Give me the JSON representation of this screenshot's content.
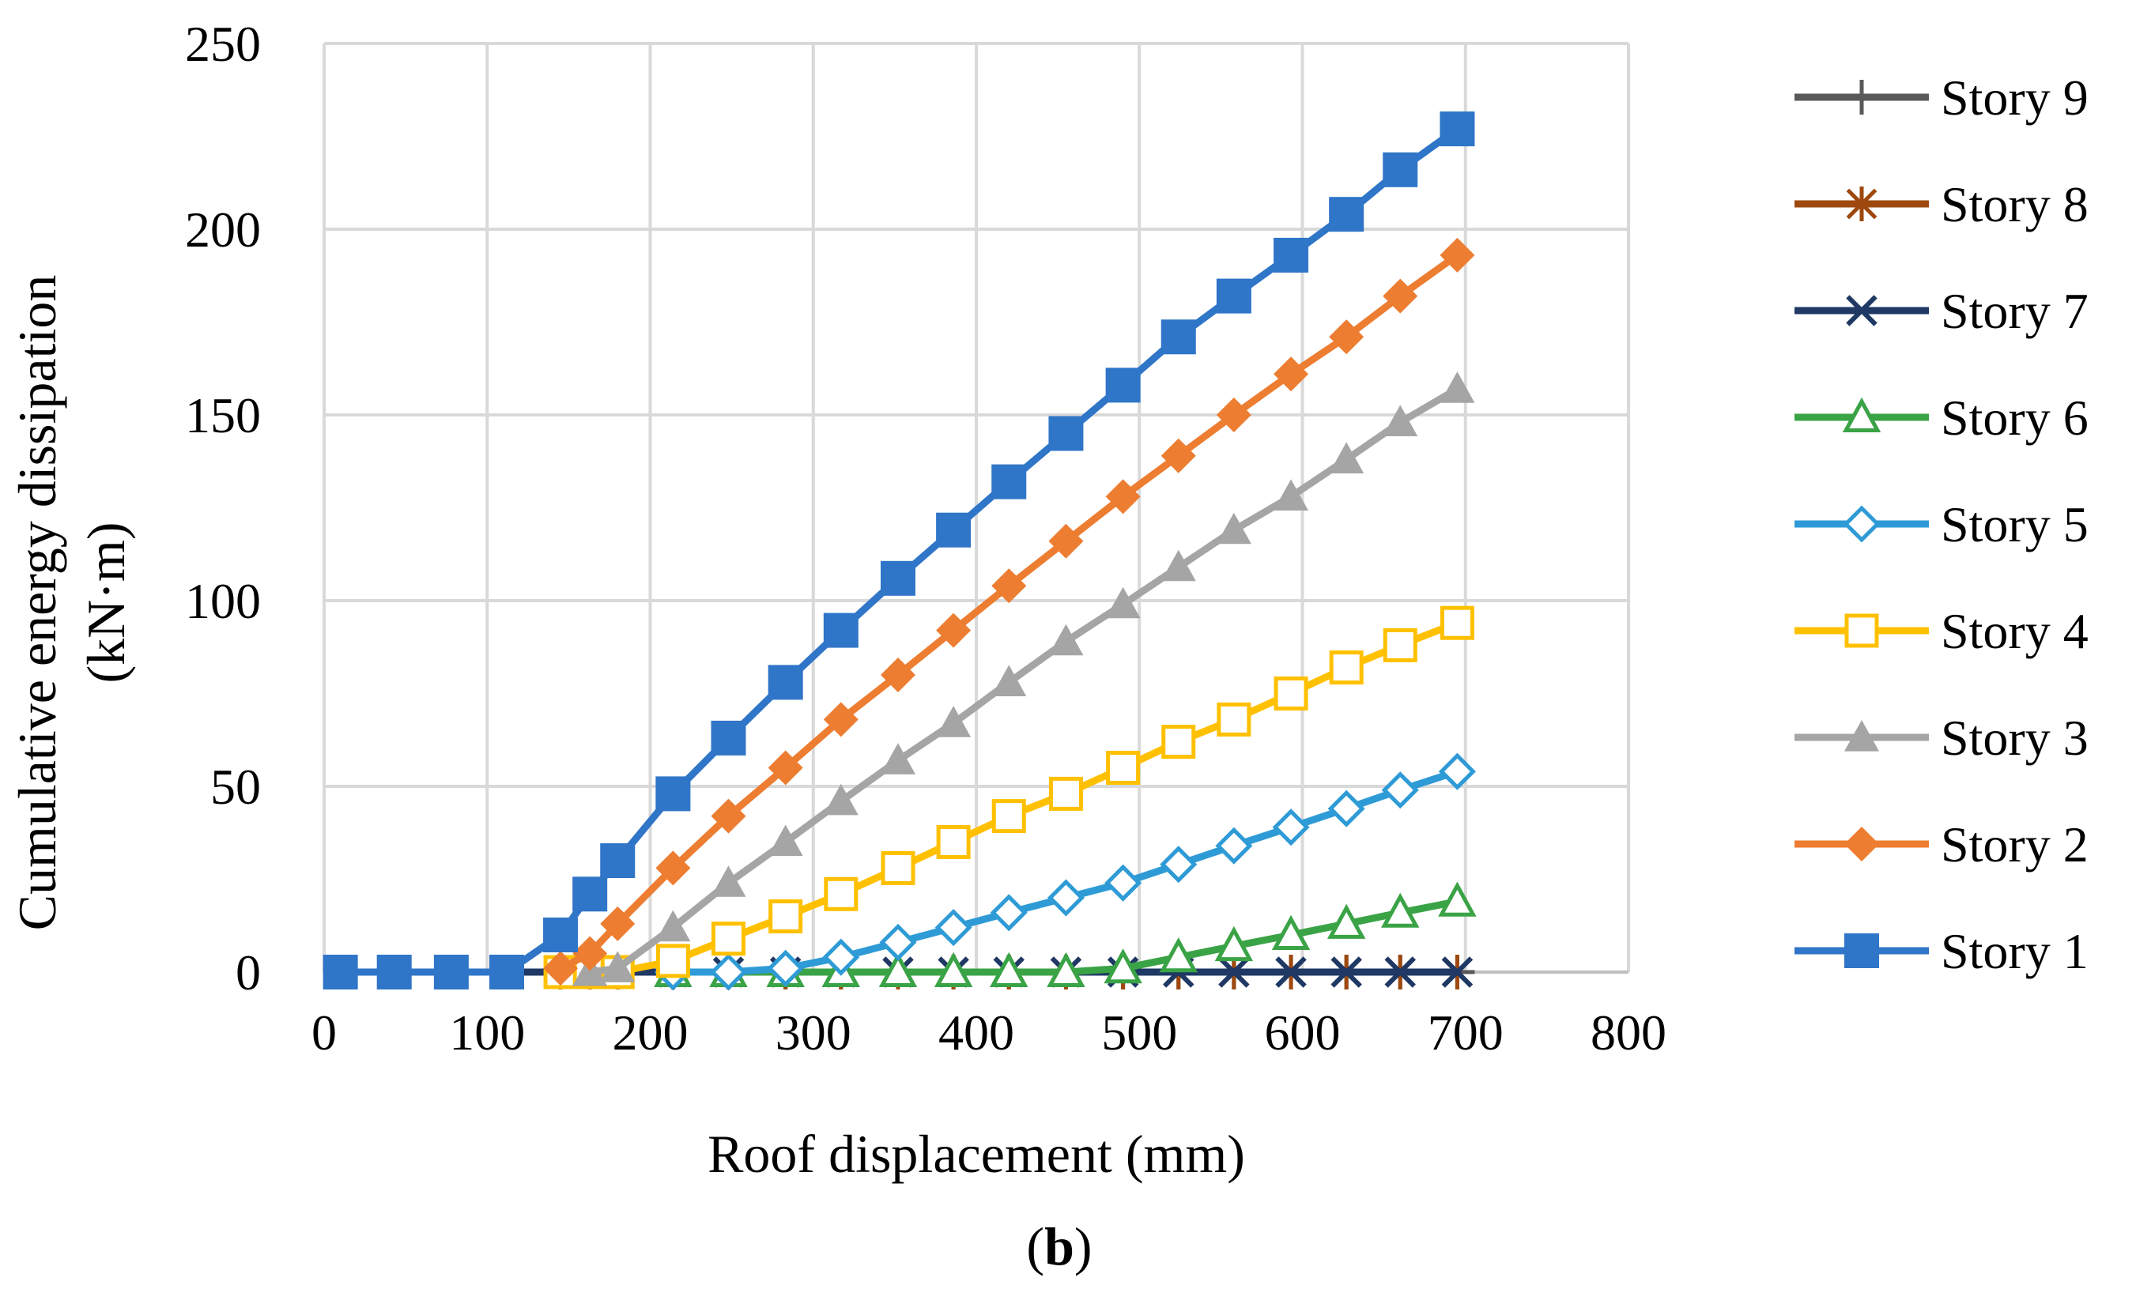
{
  "chart_data": {
    "type": "line",
    "title": "",
    "xlabel": "Roof displacement (mm)",
    "ylabel_lines": [
      "Cumulative energy dissipation",
      "(kN·m)"
    ],
    "xlim": [
      0,
      800
    ],
    "ylim": [
      0,
      250
    ],
    "xticks": [
      "0",
      "100",
      "200",
      "300",
      "400",
      "500",
      "600",
      "700",
      "800"
    ],
    "yticks": [
      "0",
      "50",
      "100",
      "150",
      "200",
      "250"
    ],
    "grid": true,
    "legend_position": "right",
    "caption": {
      "open": "(",
      "bold": "b",
      "close": ")"
    },
    "series": [
      {
        "name": "Story 9",
        "color": "#595959",
        "marker": "plus",
        "x": [
          10,
          43,
          78,
          112,
          145,
          163,
          180,
          214,
          248,
          283,
          317,
          352,
          386,
          420,
          455,
          490,
          524,
          558,
          593,
          627,
          660,
          695
        ],
        "y": [
          0,
          0,
          0,
          0,
          0,
          0,
          0,
          0,
          0,
          0,
          0,
          0,
          0,
          0,
          0,
          0,
          0,
          0,
          0,
          0,
          0,
          0
        ]
      },
      {
        "name": "Story 8",
        "color": "#9E480E",
        "marker": "star",
        "x": [
          10,
          43,
          78,
          112,
          145,
          163,
          180,
          214,
          248,
          283,
          317,
          352,
          386,
          420,
          455,
          490,
          524,
          558,
          593,
          627,
          660,
          695
        ],
        "y": [
          0,
          0,
          0,
          0,
          0,
          0,
          0,
          0,
          0,
          0,
          0,
          0,
          0,
          0,
          0,
          0,
          0,
          0,
          0,
          0,
          0,
          0
        ]
      },
      {
        "name": "Story 7",
        "color": "#1F3864",
        "marker": "x",
        "x": [
          10,
          43,
          78,
          112,
          145,
          163,
          180,
          214,
          248,
          283,
          317,
          352,
          386,
          420,
          455,
          490,
          524,
          558,
          593,
          627,
          660,
          695
        ],
        "y": [
          0,
          0,
          0,
          0,
          0,
          0,
          0,
          0,
          0,
          0,
          0,
          0,
          0,
          0,
          0,
          0,
          0,
          0,
          0,
          0,
          0,
          0
        ]
      },
      {
        "name": "Story 6",
        "color": "#3AA346",
        "marker": "triangle-open",
        "x": [
          214,
          248,
          283,
          317,
          352,
          386,
          420,
          455,
          490,
          524,
          558,
          593,
          627,
          660,
          695
        ],
        "y": [
          0,
          0,
          0,
          0,
          0,
          0,
          0,
          0,
          1,
          4,
          7,
          10,
          13,
          16,
          19
        ]
      },
      {
        "name": "Story 5",
        "color": "#2E9BD6",
        "marker": "diamond-open",
        "x": [
          214,
          248,
          283,
          317,
          352,
          386,
          420,
          455,
          490,
          524,
          558,
          593,
          627,
          660,
          695
        ],
        "y": [
          0,
          0,
          1,
          4,
          8,
          12,
          16,
          20,
          24,
          29,
          34,
          39,
          44,
          49,
          54
        ]
      },
      {
        "name": "Story 4",
        "color": "#FFC000",
        "marker": "square-open",
        "x": [
          145,
          163,
          180,
          214,
          248,
          283,
          317,
          352,
          386,
          420,
          455,
          490,
          524,
          558,
          593,
          627,
          660,
          695
        ],
        "y": [
          0,
          0,
          0,
          3,
          9,
          15,
          21,
          28,
          35,
          42,
          48,
          55,
          62,
          68,
          75,
          82,
          88,
          94
        ]
      },
      {
        "name": "Story 3",
        "color": "#A5A5A5",
        "marker": "triangle",
        "x": [
          163,
          180,
          214,
          248,
          283,
          317,
          352,
          386,
          420,
          455,
          490,
          524,
          558,
          593,
          627,
          660,
          695
        ],
        "y": [
          0,
          1,
          12,
          24,
          35,
          46,
          57,
          67,
          78,
          89,
          99,
          109,
          119,
          128,
          138,
          148,
          157
        ]
      },
      {
        "name": "Story 2",
        "color": "#ED7D31",
        "marker": "diamond",
        "x": [
          145,
          163,
          180,
          214,
          248,
          283,
          317,
          352,
          386,
          420,
          455,
          490,
          524,
          558,
          593,
          627,
          660,
          695
        ],
        "y": [
          1,
          5,
          13,
          28,
          42,
          55,
          68,
          80,
          92,
          104,
          116,
          128,
          139,
          150,
          161,
          171,
          182,
          193
        ]
      },
      {
        "name": "Story 1",
        "color": "#2F75C8",
        "marker": "square",
        "x": [
          10,
          43,
          78,
          112,
          145,
          163,
          180,
          214,
          248,
          283,
          317,
          352,
          386,
          420,
          455,
          490,
          524,
          558,
          593,
          627,
          660,
          695
        ],
        "y": [
          0,
          0,
          0,
          0,
          10,
          21,
          30,
          48,
          63,
          78,
          92,
          106,
          119,
          132,
          145,
          158,
          171,
          182,
          193,
          204,
          216,
          227
        ]
      }
    ],
    "legend_order": [
      0,
      1,
      2,
      3,
      4,
      5,
      6,
      7,
      8
    ]
  }
}
